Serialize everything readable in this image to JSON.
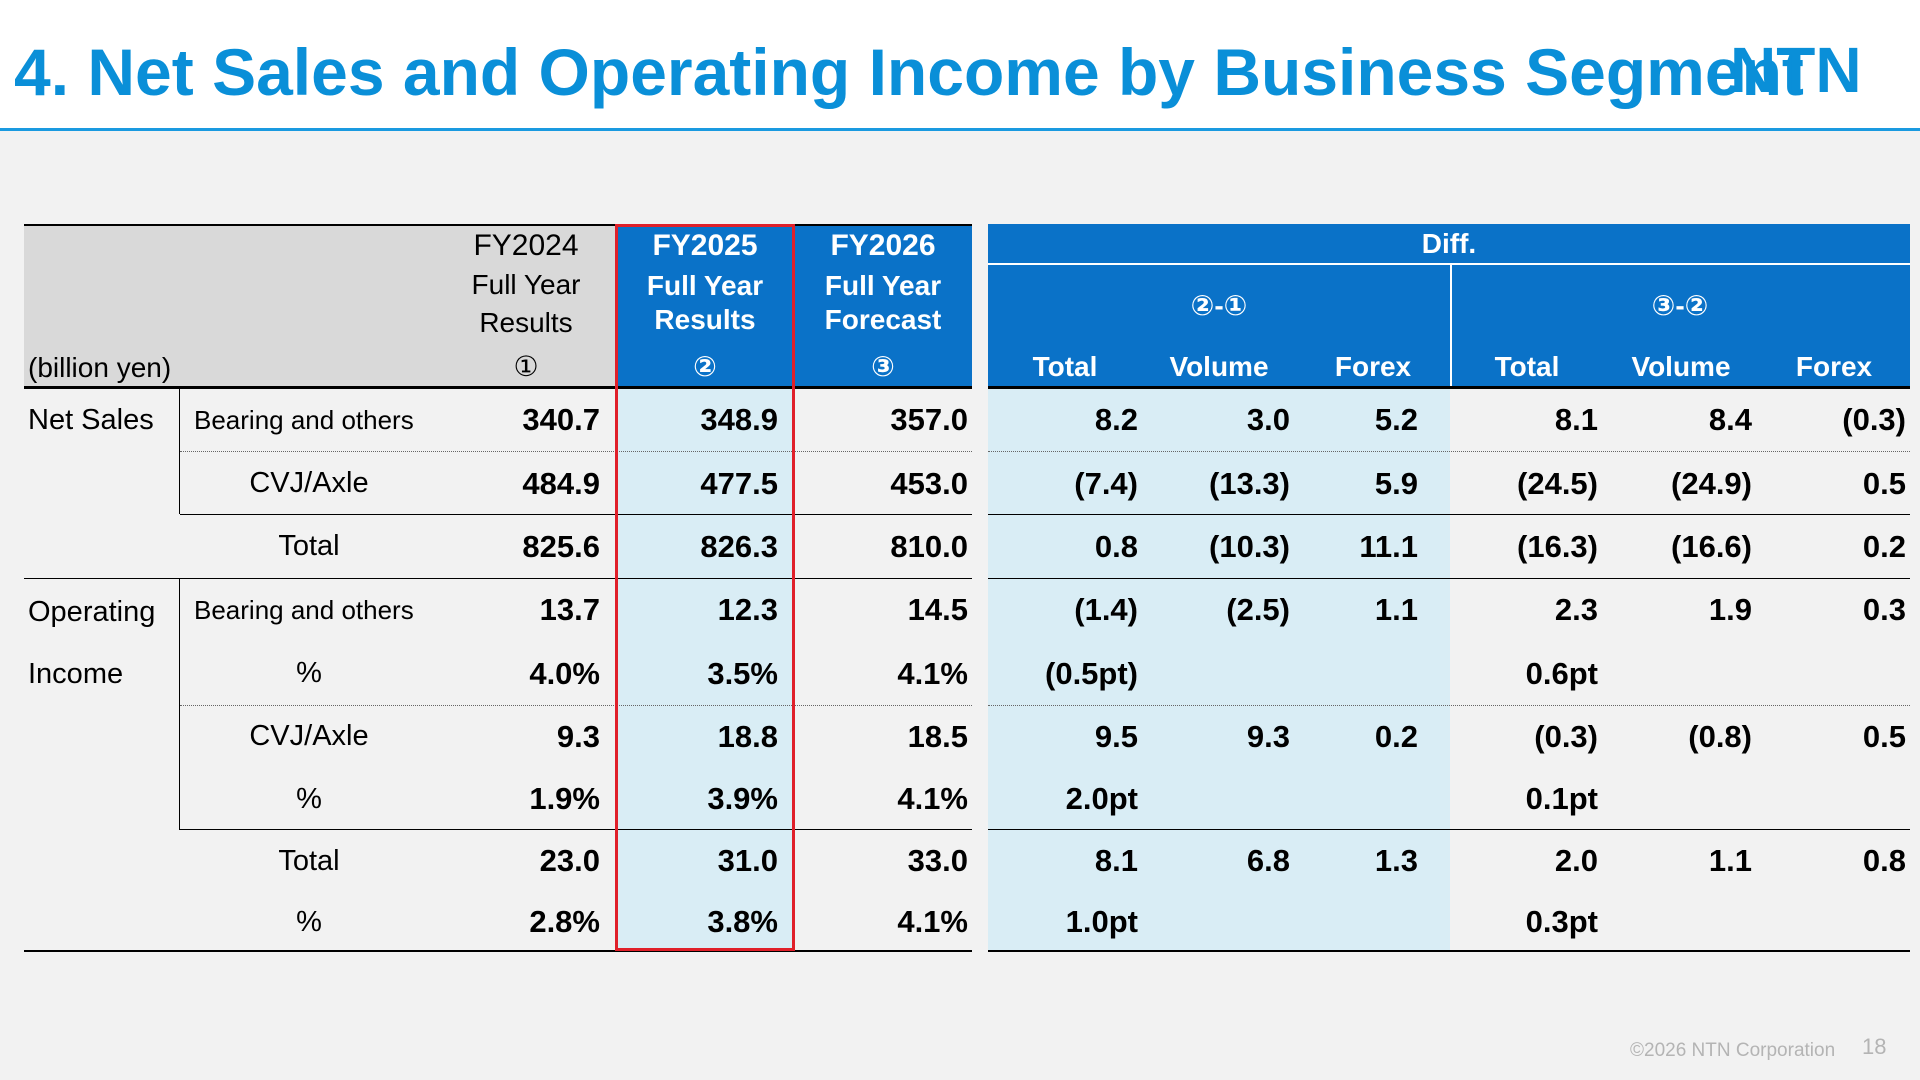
{
  "title": "4.  Net Sales and Operating Income by Business Segment",
  "logo_text": "NTN",
  "unit_label": "(billion yen)",
  "columns": {
    "fy2024": {
      "year": "FY2024",
      "line1": "Full Year",
      "line2": "Results",
      "marker": "①"
    },
    "fy2025": {
      "year": "FY2025",
      "line1": "Full Year",
      "line2": "Results",
      "marker": "②"
    },
    "fy2026": {
      "year": "FY2026",
      "line1": "Full Year",
      "line2": "Forecast",
      "marker": "③"
    },
    "diff": {
      "title": "Diff.",
      "group1": "②-①",
      "group2": "③-②",
      "sub": [
        "Total",
        "Volume",
        "Forex",
        "Total",
        "Volume",
        "Forex"
      ]
    }
  },
  "sections": {
    "net_sales": "Net Sales",
    "operating_line1": "Operating",
    "operating_line2": "Income"
  },
  "rows": [
    {
      "label": "Bearing and others",
      "values": [
        "340.7",
        "348.9",
        "357.0",
        "8.2",
        "3.0",
        "5.2",
        "8.1",
        "8.4",
        "(0.3)"
      ]
    },
    {
      "label": "CVJ/Axle",
      "values": [
        "484.9",
        "477.5",
        "453.0",
        "(7.4)",
        "(13.3)",
        "5.9",
        "(24.5)",
        "(24.9)",
        "0.5"
      ]
    },
    {
      "label": "Total",
      "values": [
        "825.6",
        "826.3",
        "810.0",
        "0.8",
        "(10.3)",
        "11.1",
        "(16.3)",
        "(16.6)",
        "0.2"
      ]
    },
    {
      "label": "Bearing and others",
      "values": [
        "13.7",
        "12.3",
        "14.5",
        "(1.4)",
        "(2.5)",
        "1.1",
        "2.3",
        "1.9",
        "0.3"
      ]
    },
    {
      "label": "%",
      "values": [
        "4.0%",
        "3.5%",
        "4.1%",
        "(0.5pt)",
        "",
        "",
        "0.6pt",
        "",
        ""
      ]
    },
    {
      "label": "CVJ/Axle",
      "values": [
        "9.3",
        "18.8",
        "18.5",
        "9.5",
        "9.3",
        "0.2",
        "(0.3)",
        "(0.8)",
        "0.5"
      ]
    },
    {
      "label": "%",
      "values": [
        "1.9%",
        "3.9%",
        "4.1%",
        "2.0pt",
        "",
        "",
        "0.1pt",
        "",
        ""
      ]
    },
    {
      "label": "Total",
      "values": [
        "23.0",
        "31.0",
        "33.0",
        "8.1",
        "6.8",
        "1.3",
        "2.0",
        "1.1",
        "0.8"
      ]
    },
    {
      "label": "%",
      "values": [
        "2.8%",
        "3.8%",
        "4.1%",
        "1.0pt",
        "",
        "",
        "0.3pt",
        "",
        ""
      ]
    }
  ],
  "footer": {
    "copyright": "©2026 NTN Corporation",
    "page": "18"
  },
  "colors": {
    "blue": "#0a72c8",
    "light_blue": "#d9edf5",
    "gray": "#d9d9d9",
    "red": "#e0202a",
    "title": "#0a8fd8"
  }
}
